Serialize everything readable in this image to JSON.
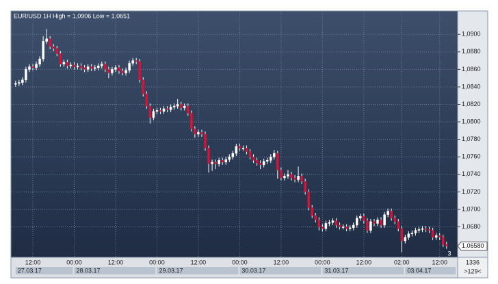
{
  "chart_data": {
    "type": "candlestick",
    "title": "EUR/USD 1H High = 1,0906 Low = 1,0651",
    "open": [
      1.0843,
      1.0844,
      1.0845,
      1.0848,
      1.086,
      1.0863,
      1.0862,
      1.0866,
      1.0872,
      1.0892,
      1.0895,
      1.0886,
      1.0884,
      1.0878,
      1.0866,
      1.0868,
      1.0864,
      1.0865,
      1.0863,
      1.0864,
      1.0862,
      1.086,
      1.0863,
      1.0861,
      1.0862,
      1.0864,
      1.0866,
      1.086,
      1.0856,
      1.086,
      1.0862,
      1.0858,
      1.0856,
      1.0859,
      1.0867,
      1.087,
      1.0869,
      1.0848,
      1.0832,
      1.0818,
      1.0805,
      1.0812,
      1.0813,
      1.0812,
      1.0815,
      1.0814,
      1.0817,
      1.0818,
      1.082,
      1.0816,
      1.0818,
      1.081,
      1.0792,
      1.0786,
      1.0788,
      1.0786,
      1.077,
      1.0752,
      1.0754,
      1.0752,
      1.0756,
      1.0754,
      1.0757,
      1.076,
      1.0764,
      1.0772,
      1.077,
      1.077,
      1.0766,
      1.076,
      1.0756,
      1.0753,
      1.0751,
      1.0755,
      1.0756,
      1.076,
      1.0764,
      1.0745,
      1.0736,
      1.0738,
      1.074,
      1.0736,
      1.0734,
      1.0738,
      1.0732,
      1.072,
      1.0702,
      1.0693,
      1.0688,
      1.068,
      1.0678,
      1.0684,
      1.0685,
      1.0687,
      1.0682,
      1.068,
      1.068,
      1.0678,
      1.0679,
      1.0682,
      1.069,
      1.0692,
      1.0687,
      1.0676,
      1.0686,
      1.0684,
      1.0688,
      1.0682,
      1.0694,
      1.0698,
      1.069,
      1.0686,
      1.0678,
      1.0664,
      1.0668,
      1.0672,
      1.0673,
      1.0676,
      1.0677,
      1.0678,
      1.0677,
      1.0676,
      1.0668,
      1.067,
      1.0668,
      1.066
    ],
    "high": [
      1.0847,
      1.0848,
      1.0851,
      1.0863,
      1.0866,
      1.0866,
      1.0869,
      1.0875,
      1.0898,
      1.0906,
      1.0898,
      1.0889,
      1.0887,
      1.0881,
      1.0871,
      1.0871,
      1.0868,
      1.0868,
      1.0867,
      1.0867,
      1.0865,
      1.0866,
      1.0866,
      1.0865,
      1.0867,
      1.0869,
      1.0869,
      1.0863,
      1.0863,
      1.0865,
      1.0865,
      1.0861,
      1.0862,
      1.087,
      1.0873,
      1.0873,
      1.0872,
      1.0851,
      1.0835,
      1.0821,
      1.0815,
      1.0816,
      1.0816,
      1.0818,
      1.0818,
      1.082,
      1.0821,
      1.0826,
      1.0823,
      1.0821,
      1.0821,
      1.0813,
      1.0795,
      1.0791,
      1.0791,
      1.0789,
      1.0773,
      1.0757,
      1.0757,
      1.0759,
      1.0759,
      1.076,
      1.0763,
      1.0767,
      1.0775,
      1.0775,
      1.0773,
      1.0773,
      1.0769,
      1.0763,
      1.0759,
      1.0756,
      1.0758,
      1.0759,
      1.0763,
      1.0768,
      1.0767,
      1.0748,
      1.0741,
      1.0745,
      1.0743,
      1.0739,
      1.0749,
      1.0741,
      1.0735,
      1.0723,
      1.0705,
      1.0696,
      1.0691,
      1.0683,
      1.0687,
      1.0688,
      1.069,
      1.069,
      1.0685,
      1.0683,
      1.0683,
      1.0682,
      1.0685,
      1.0693,
      1.0695,
      1.0695,
      1.069,
      1.0689,
      1.0689,
      1.0691,
      1.0691,
      1.0697,
      1.0701,
      1.0701,
      1.0693,
      1.0689,
      1.0681,
      1.0671,
      1.0675,
      1.0676,
      1.0679,
      1.068,
      1.0681,
      1.0681,
      1.068,
      1.0679,
      1.0673,
      1.0673,
      1.0671,
      1.0663
    ],
    "low": [
      1.084,
      1.0841,
      1.0842,
      1.0845,
      1.0857,
      1.0859,
      1.0859,
      1.0863,
      1.0869,
      1.0889,
      1.0883,
      1.0881,
      1.0875,
      1.0863,
      1.0863,
      1.0861,
      1.0861,
      1.086,
      1.086,
      1.0859,
      1.0857,
      1.0857,
      1.0858,
      1.0858,
      1.0859,
      1.0861,
      1.0857,
      1.085,
      1.0853,
      1.0857,
      1.0855,
      1.0853,
      1.0853,
      1.0856,
      1.0864,
      1.0866,
      1.0845,
      1.0829,
      1.0815,
      1.0798,
      1.0802,
      1.0809,
      1.0809,
      1.0809,
      1.0811,
      1.0811,
      1.0814,
      1.0815,
      1.0813,
      1.0813,
      1.0807,
      1.0789,
      1.0782,
      1.0783,
      1.0783,
      1.0767,
      1.0742,
      1.0744,
      1.0746,
      1.0749,
      1.0751,
      1.0751,
      1.0754,
      1.0757,
      1.0761,
      1.0767,
      1.0767,
      1.0763,
      1.0757,
      1.0753,
      1.075,
      1.0746,
      1.0748,
      1.0752,
      1.0753,
      1.0757,
      1.0735,
      1.0733,
      1.0733,
      1.0735,
      1.0733,
      1.0731,
      1.0731,
      1.0729,
      1.0717,
      1.0699,
      1.069,
      1.0685,
      1.0676,
      1.0675,
      1.0675,
      1.0681,
      1.0682,
      1.0679,
      1.0677,
      1.0677,
      1.0675,
      1.0675,
      1.0676,
      1.0679,
      1.0687,
      1.0684,
      1.0673,
      1.0673,
      1.0681,
      1.0681,
      1.0679,
      1.0679,
      1.0691,
      1.0687,
      1.0683,
      1.0675,
      1.0651,
      1.0661,
      1.0665,
      1.0669,
      1.067,
      1.0673,
      1.0674,
      1.0674,
      1.0673,
      1.0665,
      1.0665,
      1.0665,
      1.0657,
      1.0655
    ],
    "close": [
      1.0844,
      1.0845,
      1.0848,
      1.086,
      1.0863,
      1.0862,
      1.0866,
      1.0872,
      1.0892,
      1.0895,
      1.0886,
      1.0884,
      1.0878,
      1.0866,
      1.0868,
      1.0864,
      1.0865,
      1.0863,
      1.0864,
      1.0862,
      1.086,
      1.0863,
      1.0861,
      1.0862,
      1.0864,
      1.0866,
      1.086,
      1.0856,
      1.086,
      1.0862,
      1.0858,
      1.0856,
      1.0859,
      1.0867,
      1.087,
      1.0869,
      1.0848,
      1.0832,
      1.0818,
      1.0805,
      1.0812,
      1.0813,
      1.0812,
      1.0815,
      1.0814,
      1.0817,
      1.0818,
      1.082,
      1.0816,
      1.0818,
      1.081,
      1.0792,
      1.0786,
      1.0788,
      1.0786,
      1.077,
      1.0752,
      1.0754,
      1.0752,
      1.0756,
      1.0754,
      1.0757,
      1.076,
      1.0764,
      1.0772,
      1.077,
      1.077,
      1.0766,
      1.076,
      1.0756,
      1.0753,
      1.0751,
      1.0755,
      1.0756,
      1.076,
      1.0764,
      1.0745,
      1.0736,
      1.0738,
      1.074,
      1.0736,
      1.0734,
      1.0738,
      1.0732,
      1.072,
      1.0702,
      1.0693,
      1.0688,
      1.068,
      1.0678,
      1.0684,
      1.0685,
      1.0687,
      1.0682,
      1.068,
      1.068,
      1.0678,
      1.0679,
      1.0682,
      1.069,
      1.0692,
      1.0687,
      1.0676,
      1.0686,
      1.0684,
      1.0688,
      1.0682,
      1.0694,
      1.0698,
      1.069,
      1.0686,
      1.0678,
      1.0664,
      1.0668,
      1.0672,
      1.0673,
      1.0676,
      1.0677,
      1.0678,
      1.0677,
      1.0676,
      1.0668,
      1.067,
      1.0668,
      1.066,
      1.0658
    ],
    "up_color": "#ffffff",
    "down_color": "#d2143a",
    "ylim": [
      1.0646,
      1.0926
    ],
    "yticks": [
      {
        "value": 1.068,
        "label": "1,0680"
      },
      {
        "value": 1.07,
        "label": "1,0700"
      },
      {
        "value": 1.072,
        "label": "1,0720"
      },
      {
        "value": 1.074,
        "label": "1,0740"
      },
      {
        "value": 1.076,
        "label": "1,0760"
      },
      {
        "value": 1.078,
        "label": "1,0780"
      },
      {
        "value": 1.08,
        "label": "1,0800"
      },
      {
        "value": 1.082,
        "label": "1,0820"
      },
      {
        "value": 1.084,
        "label": "1,0840"
      },
      {
        "value": 1.086,
        "label": "1,0860"
      },
      {
        "value": 1.088,
        "label": "1,0880"
      },
      {
        "value": 1.09,
        "label": "1,0900"
      }
    ],
    "xticks": [
      {
        "value": 5,
        "label": "12:00"
      },
      {
        "value": 17,
        "label": "00:00"
      },
      {
        "value": 29,
        "label": "12:00"
      },
      {
        "value": 41,
        "label": "00:00"
      },
      {
        "value": 53,
        "label": "12:00"
      },
      {
        "value": 65,
        "label": "00:00"
      },
      {
        "value": 77,
        "label": "12:00"
      },
      {
        "value": 89,
        "label": "00:00"
      },
      {
        "value": 101,
        "label": "12:00"
      },
      {
        "value": 112,
        "label": "02:00"
      },
      {
        "value": 123,
        "label": "12:00"
      }
    ],
    "date_labels": [
      {
        "value": 0,
        "label": "27.03.17"
      },
      {
        "value": 17,
        "label": "28.03.17"
      },
      {
        "value": 41,
        "label": "29.03.17"
      },
      {
        "value": 65,
        "label": "30.03.17"
      },
      {
        "value": 89,
        "label": "31.03.17"
      },
      {
        "value": 113,
        "label": "03.04.17"
      }
    ],
    "grid": true,
    "last_price": {
      "value": 1.0658,
      "label": "1,06580"
    },
    "corner_note": "3",
    "bar_count": 1336,
    "zoom": ">129<"
  }
}
